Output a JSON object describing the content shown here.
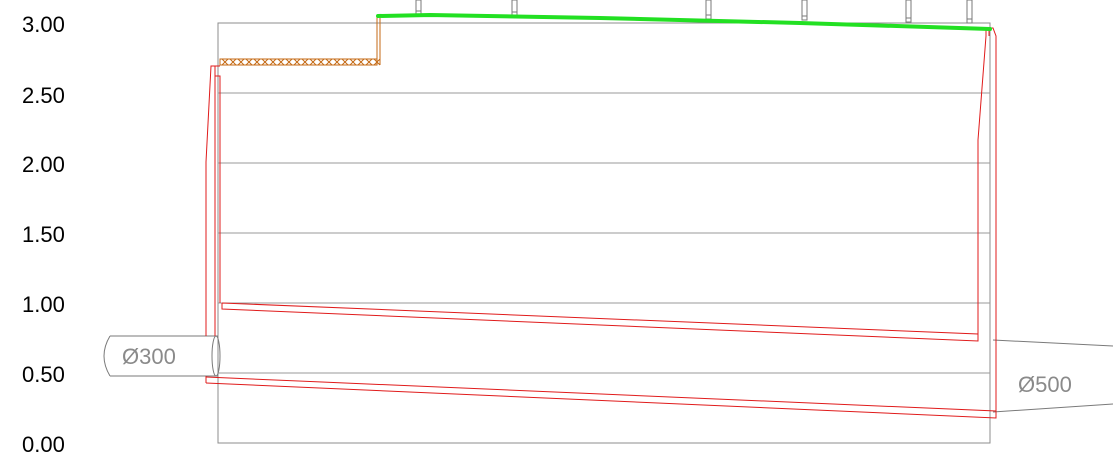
{
  "axis": {
    "tick_labels": [
      "3.00",
      "2.50",
      "2.00",
      "1.50",
      "1.00",
      "0.50",
      "0.00"
    ],
    "tick_values": [
      3.0,
      2.5,
      2.0,
      1.5,
      1.0,
      0.5,
      0.0
    ]
  },
  "pipes": {
    "inlet_label": "Ø300",
    "outlet_label": "Ø500"
  },
  "colors": {
    "frame": "#8c8c8c",
    "gridline": "#9a9a9a",
    "section_outline": "#e01b1b",
    "surface_highlight": "#22e022",
    "hatch_fill": "#c46a14",
    "pipe_outline": "#7a7a7a",
    "post_outline": "#7a7a7a"
  }
}
